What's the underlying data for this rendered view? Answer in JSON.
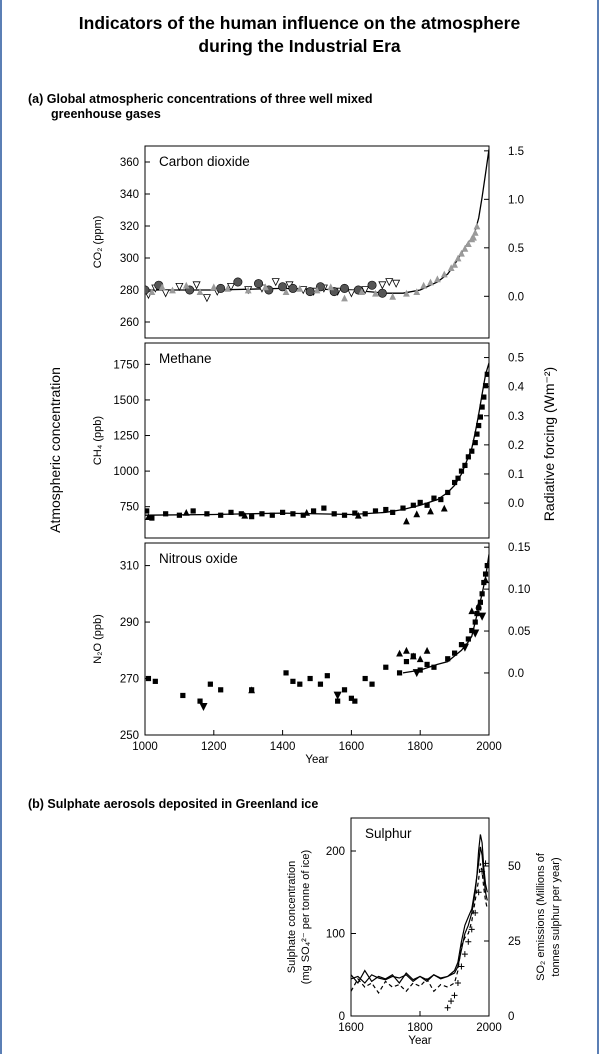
{
  "title_line1": "Indicators of the human influence on the atmosphere",
  "title_line2": "during the Industrial Era",
  "section_a_line1": "(a) Global atmospheric concentrations of three well mixed",
  "section_a_line2": "greenhouse gases",
  "section_b": "(b)  Sulphate aerosols deposited in Greenland ice",
  "shared_left_label": "Atmospheric concentration",
  "shared_right_label": "Radiative forcing  (Wm⁻²)",
  "shared_x_label": "Year",
  "chart_data": [
    {
      "type": "scatter",
      "title": "Carbon dioxide",
      "ylabel": "CO₂ (ppm)",
      "y2label": "",
      "xlim": [
        1000,
        2000
      ],
      "ylim": [
        250,
        370
      ],
      "y2lim": [
        -0.43,
        1.55
      ],
      "yticks": [
        260,
        280,
        300,
        320,
        340,
        360
      ],
      "y2ticks": [
        0.0,
        0.5,
        1.0,
        1.5
      ],
      "y2ticklabels": [
        "0.0",
        "0.5",
        "1.0",
        "1.5"
      ],
      "xticks": [],
      "xlabel": "",
      "color": "#999999",
      "curve": {
        "x": [
          1000,
          1200,
          1400,
          1600,
          1700,
          1750,
          1800,
          1850,
          1880,
          1900,
          1920,
          1940,
          1950,
          1960,
          1970,
          1980,
          1990,
          2000
        ],
        "y": [
          280,
          280,
          281,
          280,
          278,
          278,
          280,
          285,
          290,
          296,
          303,
          310,
          312,
          317,
          325,
          338,
          353,
          368
        ]
      },
      "series": [
        {
          "name": "",
          "marker": "triangle-down",
          "x": [
            1010,
            1030,
            1060,
            1100,
            1150,
            1180,
            1210,
            1250,
            1300,
            1340,
            1380,
            1420,
            1460,
            1490,
            1520,
            1560,
            1600,
            1640,
            1690,
            1710,
            1730
          ],
          "y": [
            277,
            281,
            278,
            282,
            283,
            275,
            279,
            282,
            280,
            281,
            285,
            283,
            280,
            279,
            281,
            279,
            278,
            280,
            283,
            285,
            284
          ]
        },
        {
          "name": "",
          "marker": "circle",
          "x": [
            1000,
            1040,
            1130,
            1220,
            1270,
            1330,
            1360,
            1400,
            1430,
            1480,
            1510,
            1550,
            1580,
            1620,
            1660,
            1690
          ],
          "y": [
            280,
            283,
            280,
            281,
            285,
            284,
            280,
            282,
            281,
            279,
            282,
            279,
            281,
            280,
            283,
            278
          ]
        },
        {
          "name": "",
          "marker": "triangle",
          "x": [
            1020,
            1050,
            1080,
            1120,
            1160,
            1200,
            1240,
            1300,
            1350,
            1410,
            1450,
            1500,
            1540,
            1580,
            1630,
            1670,
            1720,
            1760,
            1790,
            1810,
            1830,
            1850,
            1870,
            1890,
            1900,
            1910,
            1920,
            1930,
            1940,
            1950,
            1955,
            1960,
            1965
          ],
          "y": [
            279,
            282,
            280,
            283,
            279,
            282,
            281,
            280,
            282,
            279,
            281,
            280,
            282,
            275,
            279,
            278,
            276,
            278,
            279,
            283,
            285,
            287,
            290,
            294,
            296,
            300,
            303,
            306,
            309,
            312,
            313,
            316,
            320
          ]
        }
      ]
    },
    {
      "type": "scatter",
      "title": "Methane",
      "ylabel": "CH₄ (ppb)",
      "y2label": "",
      "xlim": [
        1000,
        2000
      ],
      "ylim": [
        530,
        1900
      ],
      "y2lim": [
        -0.12,
        0.55
      ],
      "yticks": [
        750,
        1000,
        1250,
        1500,
        1750
      ],
      "y2ticks": [
        0.0,
        0.1,
        0.2,
        0.3,
        0.4,
        0.5
      ],
      "y2ticklabels": [
        "0.0",
        "0.1",
        "0.2",
        "0.3",
        "0.4",
        "0.5"
      ],
      "xticks": [],
      "xlabel": "",
      "color": "#000000",
      "curve": {
        "x": [
          1000,
          1200,
          1400,
          1600,
          1700,
          1750,
          1800,
          1850,
          1880,
          1900,
          1920,
          1940,
          1950,
          1960,
          1970,
          1980,
          1990,
          2000
        ],
        "y": [
          690,
          695,
          705,
          695,
          710,
          730,
          760,
          800,
          850,
          900,
          980,
          1100,
          1160,
          1270,
          1400,
          1540,
          1680,
          1760
        ]
      },
      "series": [
        {
          "name": "",
          "marker": "square",
          "x": [
            1005,
            1020,
            1060,
            1100,
            1140,
            1180,
            1220,
            1250,
            1280,
            1310,
            1340,
            1370,
            1400,
            1430,
            1460,
            1490,
            1520,
            1550,
            1580,
            1610,
            1640,
            1670,
            1700,
            1720,
            1750,
            1780,
            1800,
            1820,
            1840,
            1860,
            1880,
            1900,
            1910,
            1920,
            1930,
            1940,
            1950,
            1960,
            1965,
            1970,
            1975,
            1980,
            1985,
            1990,
            1995
          ],
          "y": [
            720,
            670,
            700,
            690,
            720,
            700,
            690,
            710,
            700,
            680,
            700,
            690,
            710,
            700,
            690,
            720,
            740,
            700,
            690,
            705,
            700,
            720,
            730,
            710,
            740,
            760,
            780,
            760,
            810,
            800,
            850,
            920,
            950,
            1000,
            1040,
            1100,
            1140,
            1200,
            1260,
            1320,
            1380,
            1450,
            1520,
            1600,
            1680
          ]
        },
        {
          "name": "",
          "marker": "triangle",
          "x": [
            1010,
            1120,
            1290,
            1470,
            1620,
            1760,
            1790,
            1830,
            1870
          ],
          "y": [
            680,
            710,
            690,
            710,
            690,
            650,
            700,
            720,
            740
          ]
        }
      ]
    },
    {
      "type": "scatter",
      "title": "Nitrous oxide",
      "ylabel": "N₂O (ppb)",
      "y2label": "",
      "xlim": [
        1000,
        2000
      ],
      "ylim": [
        250,
        318
      ],
      "y2lim": [
        -0.074,
        0.155
      ],
      "yticks": [
        250,
        270,
        290,
        310
      ],
      "y2ticks": [
        0.0,
        0.05,
        0.1,
        0.15
      ],
      "y2ticklabels": [
        "0.0",
        "0.05",
        "0.10",
        "0.15"
      ],
      "xticks": [
        1000,
        1200,
        1400,
        1600,
        1800,
        2000
      ],
      "xlabel": "Year",
      "color": "#000000",
      "curve": {
        "x": [
          1750,
          1800,
          1850,
          1880,
          1900,
          1920,
          1940,
          1950,
          1960,
          1970,
          1980,
          1990,
          2000
        ],
        "y": [
          272,
          273,
          275,
          276,
          278,
          280,
          283,
          285,
          290,
          295,
          300,
          306,
          314
        ]
      },
      "series": [
        {
          "name": "",
          "marker": "square",
          "x": [
            1010,
            1030,
            1110,
            1160,
            1190,
            1220,
            1310,
            1410,
            1430,
            1450,
            1480,
            1510,
            1530,
            1560,
            1580,
            1600,
            1610,
            1640,
            1660,
            1700,
            1740,
            1760,
            1780,
            1800,
            1820,
            1840,
            1880,
            1900,
            1920,
            1940,
            1950,
            1960,
            1965,
            1970,
            1975,
            1980,
            1985,
            1990,
            1995
          ],
          "y": [
            270,
            269,
            264,
            262,
            268,
            266,
            266,
            272,
            269,
            268,
            270,
            268,
            271,
            262,
            266,
            263,
            262,
            270,
            268,
            274,
            272,
            276,
            278,
            273,
            275,
            274,
            277,
            279,
            282,
            284,
            287,
            290,
            293,
            295,
            297,
            300,
            304,
            307,
            310
          ]
        },
        {
          "name": "",
          "marker": "triangle",
          "x": [
            1310,
            1740,
            1760,
            1780,
            1800,
            1820,
            1950,
            1970,
            1990
          ],
          "y": [
            266,
            279,
            280,
            278,
            277,
            280,
            294,
            296,
            305
          ]
        },
        {
          "name": "",
          "marker": "triangle-down",
          "x": [
            1170,
            1560,
            1790,
            1930,
            1960,
            1980
          ],
          "y": [
            260,
            264,
            272,
            281,
            286,
            292
          ]
        }
      ]
    },
    {
      "type": "line",
      "title": "Sulphur",
      "ylabel": "Sulphate concentration (mg SO₄²⁻ per tonne of ice)",
      "ylabel_line1": "Sulphate concentration",
      "ylabel_line2": "(mg SO₄²⁻ per tonne of ice)",
      "y2label": "SO₂ emissions (Millions of tonnes sulphur per year)",
      "y2label_line1": "SO₂ emissions (Millions of",
      "y2label_line2": "tonnes sulphur per year)",
      "xlabel": "Year",
      "xlim": [
        1600,
        2000
      ],
      "ylim": [
        0,
        240
      ],
      "y2lim": [
        0,
        66
      ],
      "yticks": [
        0,
        100,
        200
      ],
      "y2ticks": [
        0,
        25,
        50
      ],
      "y2ticklabels": [
        "0",
        "25",
        "50"
      ],
      "xticks": [
        1600,
        1800,
        2000
      ],
      "series": [
        {
          "name": "",
          "style": "solid",
          "x": [
            1600,
            1620,
            1640,
            1660,
            1680,
            1700,
            1720,
            1740,
            1760,
            1780,
            1800,
            1820,
            1840,
            1860,
            1880,
            1900,
            1910,
            1920,
            1930,
            1940,
            1950,
            1960,
            1965,
            1970,
            1975,
            1980,
            1985,
            1990,
            1995
          ],
          "y": [
            50,
            40,
            55,
            42,
            48,
            45,
            50,
            40,
            52,
            44,
            48,
            42,
            50,
            45,
            48,
            52,
            60,
            80,
            100,
            110,
            125,
            150,
            170,
            200,
            220,
            210,
            180,
            160,
            150
          ]
        },
        {
          "name": "",
          "style": "dashed",
          "x": [
            1600,
            1620,
            1640,
            1660,
            1680,
            1700,
            1720,
            1740,
            1760,
            1780,
            1800,
            1820,
            1840,
            1860,
            1880,
            1900,
            1910,
            1920,
            1930,
            1940,
            1950,
            1960,
            1970,
            1975,
            1980,
            1985,
            1990,
            1995
          ],
          "y": [
            30,
            45,
            35,
            40,
            28,
            42,
            35,
            38,
            30,
            40,
            36,
            45,
            30,
            38,
            35,
            40,
            55,
            85,
            95,
            100,
            115,
            140,
            165,
            185,
            175,
            155,
            140,
            130
          ]
        },
        {
          "name": "",
          "style": "solid",
          "x": [
            1600,
            1620,
            1640,
            1660,
            1680,
            1700,
            1720,
            1740,
            1760,
            1780,
            1800,
            1820,
            1840,
            1860,
            1880,
            1900,
            1910,
            1920,
            1930,
            1940,
            1950,
            1960,
            1970,
            1975,
            1980,
            1985,
            1990,
            1995
          ],
          "y": [
            45,
            48,
            40,
            50,
            46,
            44,
            48,
            46,
            50,
            42,
            48,
            44,
            50,
            46,
            48,
            55,
            65,
            90,
            110,
            120,
            130,
            155,
            185,
            205,
            195,
            170,
            150,
            140
          ]
        },
        {
          "name": "",
          "style": "crosses",
          "x": [
            1880,
            1890,
            1900,
            1910,
            1920,
            1930,
            1940,
            1950,
            1960,
            1970,
            1980,
            1990
          ],
          "y": [
            10,
            18,
            25,
            40,
            60,
            75,
            90,
            105,
            125,
            150,
            175,
            185
          ]
        }
      ]
    }
  ]
}
